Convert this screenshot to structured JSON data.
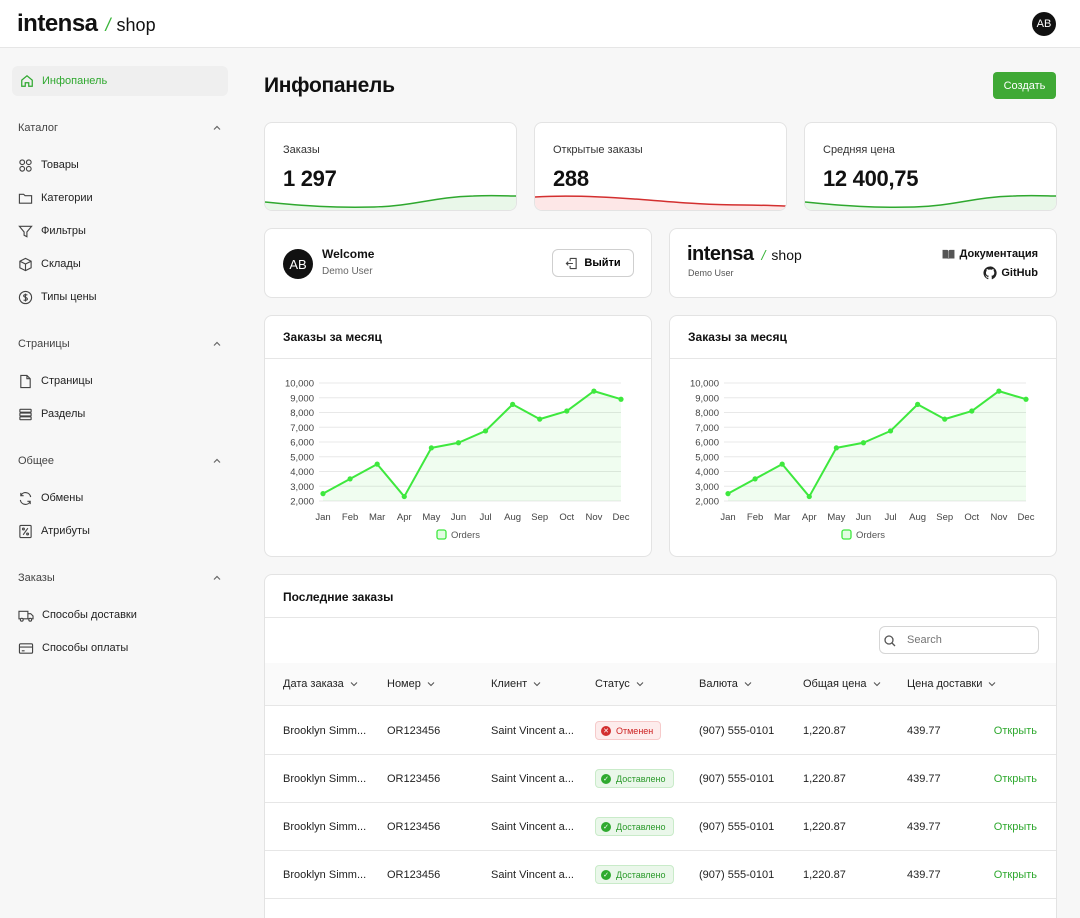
{
  "app": {
    "brand": "intensa",
    "brand_suffix": "shop",
    "user_initials": "AB"
  },
  "sidebar": {
    "active": {
      "label": "Инфопанель",
      "icon": "home-icon"
    },
    "sections": [
      {
        "title": "Каталог",
        "items": [
          {
            "label": "Товары",
            "icon": "grid-icon"
          },
          {
            "label": "Категории",
            "icon": "folder-icon"
          },
          {
            "label": "Фильтры",
            "icon": "filter-icon"
          },
          {
            "label": "Склады",
            "icon": "box-icon"
          },
          {
            "label": "Типы цены",
            "icon": "dollar-icon"
          }
        ]
      },
      {
        "title": "Страницы",
        "items": [
          {
            "label": "Страницы",
            "icon": "file-icon"
          },
          {
            "label": "Разделы",
            "icon": "list-icon"
          }
        ]
      },
      {
        "title": "Общее",
        "items": [
          {
            "label": "Обмены",
            "icon": "refresh-icon"
          },
          {
            "label": "Атрибуты",
            "icon": "percent-icon"
          }
        ]
      },
      {
        "title": "Заказы",
        "items": [
          {
            "label": "Способы доставки",
            "icon": "truck-icon"
          },
          {
            "label": "Способы оплаты",
            "icon": "card-icon"
          }
        ]
      }
    ]
  },
  "main": {
    "title": "Инфопанель",
    "create_label": "Создать",
    "stats": [
      {
        "label": "Заказы",
        "value": "1 297",
        "trend_color": "#2ea82e"
      },
      {
        "label": "Открытые заказы",
        "value": "288",
        "trend_color": "#d32f2f"
      },
      {
        "label": "Средняя цена",
        "value": "12 400,75",
        "trend_color": "#2ea82e"
      }
    ],
    "welcome": {
      "title": "Welcome",
      "subtitle": "Demo User",
      "initials": "AB",
      "logout_label": "Выйти"
    },
    "info": {
      "subtitle": "Demo User",
      "docs_label": "Документация",
      "github_label": "GitHub"
    },
    "orders_table": {
      "title": "Последние заказы",
      "search_placeholder": "Search",
      "columns": [
        "Дата заказа",
        "Номер",
        "Клиент",
        "Статус",
        "Валюта",
        "Общая цена",
        "Цена доставки"
      ],
      "open_label": "Открыть",
      "rows": [
        {
          "date": "Brooklyn Simm...",
          "number": "OR123456",
          "client": "Saint Vincent a...",
          "status": "Отменен",
          "status_type": "cancelled",
          "currency": "(907) 555-0101",
          "total": "1,220.87",
          "delivery": "439.77"
        },
        {
          "date": "Brooklyn Simm...",
          "number": "OR123456",
          "client": "Saint Vincent a...",
          "status": "Доставлено",
          "status_type": "delivered",
          "currency": "(907) 555-0101",
          "total": "1,220.87",
          "delivery": "439.77"
        },
        {
          "date": "Brooklyn Simm...",
          "number": "OR123456",
          "client": "Saint Vincent a...",
          "status": "Доставлено",
          "status_type": "delivered",
          "currency": "(907) 555-0101",
          "total": "1,220.87",
          "delivery": "439.77"
        },
        {
          "date": "Brooklyn Simm...",
          "number": "OR123456",
          "client": "Saint Vincent a...",
          "status": "Доставлено",
          "status_type": "delivered",
          "currency": "(907) 555-0101",
          "total": "1,220.87",
          "delivery": "439.77"
        }
      ]
    }
  },
  "chart_data": [
    {
      "type": "area",
      "title": "Заказы за месяц",
      "categories": [
        "Jan",
        "Feb",
        "Mar",
        "Apr",
        "May",
        "Jun",
        "Jul",
        "Aug",
        "Sep",
        "Oct",
        "Nov",
        "Dec"
      ],
      "series": [
        {
          "name": "Orders",
          "values": [
            2500,
            3500,
            4500,
            2300,
            5600,
            5950,
            6750,
            8550,
            7550,
            8100,
            9450,
            8900
          ],
          "color": "#3ee83e"
        }
      ],
      "yticks": [
        "10,000",
        "9,000",
        "8,000",
        "7,000",
        "6,000",
        "5,000",
        "4,000",
        "3,000",
        "2,000"
      ],
      "ylim": [
        2000,
        10000
      ],
      "legend": "bottom"
    },
    {
      "type": "area",
      "title": "Заказы за месяц",
      "categories": [
        "Jan",
        "Feb",
        "Mar",
        "Apr",
        "May",
        "Jun",
        "Jul",
        "Aug",
        "Sep",
        "Oct",
        "Nov",
        "Dec"
      ],
      "series": [
        {
          "name": "Orders",
          "values": [
            2500,
            3500,
            4500,
            2300,
            5600,
            5950,
            6750,
            8550,
            7550,
            8100,
            9450,
            8900
          ],
          "color": "#3ee83e"
        }
      ],
      "yticks": [
        "10,000",
        "9,000",
        "8,000",
        "7,000",
        "6,000",
        "5,000",
        "4,000",
        "3,000",
        "2,000"
      ],
      "ylim": [
        2000,
        10000
      ],
      "legend": "bottom"
    }
  ]
}
